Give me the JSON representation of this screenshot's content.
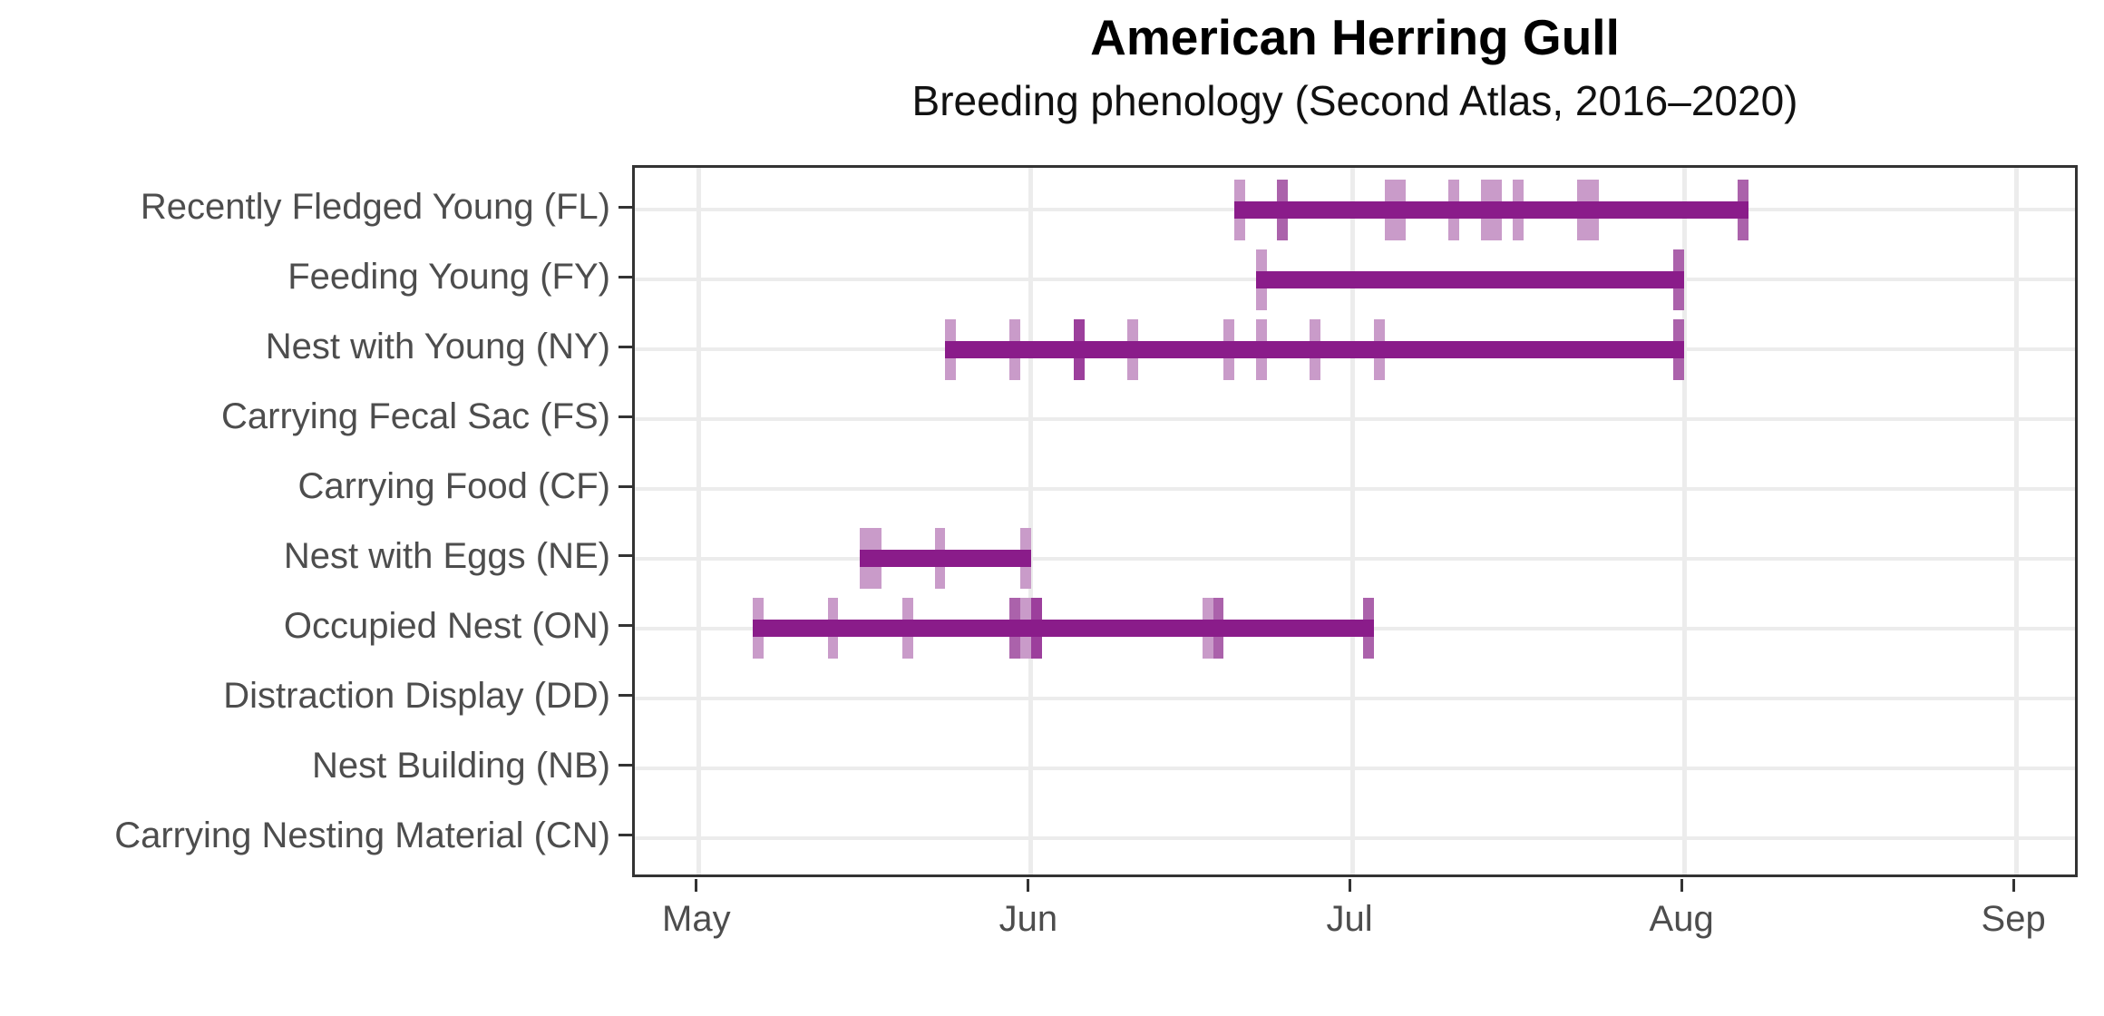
{
  "title": "American Herring Gull",
  "subtitle": "Breeding phenology (Second Atlas, 2016–2020)",
  "colors": {
    "bar": "#8a1c8a",
    "tick_light": "#c99bc9",
    "tick_medium": "#ab62ab",
    "tick_dark": "#9c3f9c",
    "gridline": "#ececec",
    "axis_text": "#4d4d4d",
    "panel_border": "#333333",
    "title_text": "#000000"
  },
  "chart_data": {
    "type": "bar",
    "subtype": "horizontal-range-timeline",
    "title": "American Herring Gull",
    "subtitle": "Breeding phenology (Second Atlas, 2016–2020)",
    "xlabel": "",
    "ylabel": "",
    "grid": true,
    "legend": false,
    "x_axis": {
      "tick_labels": [
        "May",
        "Jun",
        "Jul",
        "Aug",
        "Sep"
      ],
      "tick_days": [
        0,
        31,
        61,
        92,
        123
      ],
      "domain_days": [
        -6,
        129
      ],
      "note": "day index counted from May 1 = 0"
    },
    "categories": [
      "Recently Fledged Young (FL)",
      "Feeding Young (FY)",
      "Nest with Young (NY)",
      "Carrying Fecal Sac (FS)",
      "Carrying Food (CF)",
      "Nest with Eggs (NE)",
      "Occupied Nest (ON)",
      "Distraction Display (DD)",
      "Nest Building (NB)",
      "Carrying Nesting Material (CN)"
    ],
    "series": [
      {
        "code": "FL",
        "label": "Recently Fledged Young (FL)",
        "bar": {
          "start": "Jun 20",
          "end": "Aug 7"
        },
        "observations": [
          {
            "date": "Jun 20",
            "shade": "light"
          },
          {
            "date": "Jun 24",
            "shade": "medium"
          },
          {
            "date": "Jul 4",
            "shade": "light"
          },
          {
            "date": "Jul 5",
            "shade": "light"
          },
          {
            "date": "Jul 10",
            "shade": "light"
          },
          {
            "date": "Jul 13",
            "shade": "light"
          },
          {
            "date": "Jul 14",
            "shade": "light"
          },
          {
            "date": "Jul 16",
            "shade": "light"
          },
          {
            "date": "Jul 22",
            "shade": "light"
          },
          {
            "date": "Jul 23",
            "shade": "light"
          },
          {
            "date": "Aug 6",
            "shade": "medium"
          }
        ]
      },
      {
        "code": "FY",
        "label": "Feeding Young (FY)",
        "bar": {
          "start": "Jun 22",
          "end": "Aug 1"
        },
        "observations": [
          {
            "date": "Jun 22",
            "shade": "light"
          },
          {
            "date": "Jul 31",
            "shade": "medium"
          }
        ]
      },
      {
        "code": "NY",
        "label": "Nest with Young (NY)",
        "bar": {
          "start": "May 24",
          "end": "Aug 1"
        },
        "observations": [
          {
            "date": "May 24",
            "shade": "light"
          },
          {
            "date": "May 30",
            "shade": "light"
          },
          {
            "date": "Jun 5",
            "shade": "dark"
          },
          {
            "date": "Jun 10",
            "shade": "light"
          },
          {
            "date": "Jun 19",
            "shade": "light"
          },
          {
            "date": "Jun 22",
            "shade": "light"
          },
          {
            "date": "Jun 27",
            "shade": "light"
          },
          {
            "date": "Jul 3",
            "shade": "light"
          },
          {
            "date": "Jul 31",
            "shade": "medium"
          }
        ]
      },
      {
        "code": "FS",
        "label": "Carrying Fecal Sac (FS)",
        "bar": null,
        "observations": []
      },
      {
        "code": "CF",
        "label": "Carrying Food (CF)",
        "bar": null,
        "observations": []
      },
      {
        "code": "NE",
        "label": "Nest with Eggs (NE)",
        "bar": {
          "start": "May 16",
          "end": "Jun 1"
        },
        "observations": [
          {
            "date": "May 16",
            "shade": "light"
          },
          {
            "date": "May 17",
            "shade": "light"
          },
          {
            "date": "May 23",
            "shade": "light"
          },
          {
            "date": "May 31",
            "shade": "light"
          }
        ]
      },
      {
        "code": "ON",
        "label": "Occupied Nest (ON)",
        "bar": {
          "start": "May 6",
          "end": "Jul 3"
        },
        "observations": [
          {
            "date": "May 6",
            "shade": "light"
          },
          {
            "date": "May 13",
            "shade": "light"
          },
          {
            "date": "May 20",
            "shade": "light"
          },
          {
            "date": "May 30",
            "shade": "medium"
          },
          {
            "date": "May 31",
            "shade": "light"
          },
          {
            "date": "Jun 1",
            "shade": "dark"
          },
          {
            "date": "Jun 17",
            "shade": "light"
          },
          {
            "date": "Jun 18",
            "shade": "medium"
          },
          {
            "date": "Jul 2",
            "shade": "medium"
          }
        ]
      },
      {
        "code": "DD",
        "label": "Distraction Display (DD)",
        "bar": null,
        "observations": []
      },
      {
        "code": "NB",
        "label": "Nest Building (NB)",
        "bar": null,
        "observations": []
      },
      {
        "code": "CN",
        "label": "Carrying Nesting Material (CN)",
        "bar": null,
        "observations": []
      }
    ]
  }
}
